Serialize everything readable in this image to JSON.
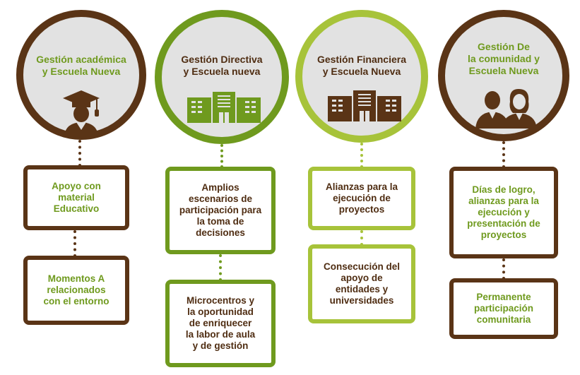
{
  "columns": [
    {
      "title": "Gestión académica\ny Escuela Nueva",
      "icon": "graduate-icon",
      "items": [
        "Apoyo con\nmaterial\nEducativo",
        "Momentos A\nrelacionados\ncon el entorno"
      ]
    },
    {
      "title": "Gestión Directiva\ny Escuela nueva",
      "icon": "school-building-icon",
      "items": [
        "Amplios\nescenarios de\nparticipación para\nla toma de\ndecisiones",
        "Microcentros y\nla oportunidad\nde enriquecer\nla labor de aula\ny de gestión"
      ]
    },
    {
      "title": "Gestión Financiera\ny Escuela Nueva",
      "icon": "school-building-icon",
      "items": [
        "Alianzas para la\nejecución de\nproyectos",
        "Consecución del\napoyo de\nentidades y\nuniversidades"
      ]
    },
    {
      "title": "Gestión De\nla comunidad y\nEscuela Nueva",
      "icon": "community-people-icon",
      "items": [
        "Días de logro,\nalianzas para la\nejecución y\npresentación de\nproyectos",
        "Permanente\nparticipación\ncomunitaria"
      ]
    }
  ],
  "colors": {
    "brown": "#5a3416",
    "green": "#6f9a1e",
    "lime": "#a7c33a",
    "circle_fill": "#e2e2e2"
  }
}
